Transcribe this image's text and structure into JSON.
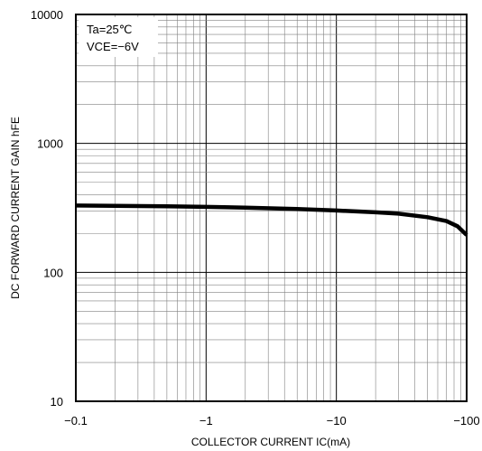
{
  "chart_data": {
    "type": "line",
    "xlabel": "COLLECTOR CURRENT IC(mA)",
    "ylabel": "DC FORWARD CURRENT GAIN hFE",
    "x_scale": "log",
    "y_scale": "log",
    "xlim": [
      -0.1,
      -100
    ],
    "ylim": [
      10,
      10000
    ],
    "x_ticks": [
      -0.1,
      -1,
      -10,
      -100
    ],
    "x_tick_labels": [
      "−0.1",
      "−1",
      "−10",
      "−100"
    ],
    "y_ticks": [
      10,
      100,
      1000,
      10000
    ],
    "y_tick_labels": [
      "10",
      "100",
      "1000",
      "10000"
    ],
    "grid": true,
    "annotations": [
      "Ta=25℃",
      "VCE=−6V"
    ],
    "series": [
      {
        "x": [
          -0.1,
          -0.2,
          -0.5,
          -1,
          -2,
          -5,
          -10,
          -20,
          -30,
          -50,
          -70,
          -85,
          -100
        ],
        "y": [
          330,
          328,
          325,
          322,
          318,
          310,
          302,
          292,
          285,
          268,
          250,
          228,
          195
        ]
      }
    ],
    "colors": {
      "line": "#000000",
      "grid": "#808080",
      "background": "#ffffff"
    }
  }
}
